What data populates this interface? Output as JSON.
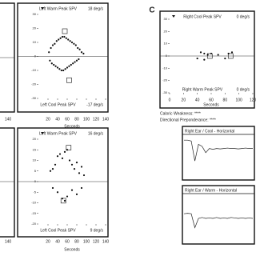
{
  "figure_label": "C",
  "left_fragment_tick": "140",
  "notes": [
    "Caloric Weakness: ****",
    "Directional Preponderance: ****"
  ],
  "chart_data": [
    {
      "type": "scatter",
      "top_label": "Left Warm Peak SPV",
      "top_value_label": "18 deg/s",
      "bottom_label": "Left Cool Peak SPV",
      "bottom_value_label": "-17 deg/s",
      "x_label": "Seconds",
      "xlim": [
        0,
        140
      ],
      "xticks": [
        20,
        40,
        60,
        80,
        100,
        120,
        140
      ],
      "ylim": [
        -30,
        30
      ],
      "yticks": [
        30,
        20,
        10,
        0,
        -10,
        -20,
        -30
      ],
      "color": "#111111",
      "x": [
        22,
        26,
        30,
        34,
        38,
        42,
        46,
        50,
        54,
        58,
        62,
        66,
        70,
        74,
        78,
        82,
        86,
        90,
        94,
        24,
        28,
        32,
        36,
        40,
        44,
        48,
        52,
        56,
        60,
        64,
        68,
        72,
        76,
        80,
        84
      ],
      "values": [
        3,
        6,
        8,
        9,
        11,
        12,
        13,
        14,
        14,
        13,
        12,
        11,
        10,
        9,
        8,
        6,
        5,
        3,
        2,
        -3,
        -5,
        -6,
        -7,
        -8,
        -9,
        -10,
        -10,
        -9,
        -8,
        -7,
        -6,
        -5,
        -4,
        -3,
        -2
      ],
      "peaks": {
        "x": [
          55,
          64
        ],
        "values": [
          18,
          -17
        ]
      }
    },
    {
      "type": "scatter",
      "top_label": "Left Warm Peak SPV",
      "top_value_label": "16 deg/s",
      "bottom_label": "Left Cool Peak SPV",
      "bottom_value_label": "9 deg/s",
      "x_label": "Seconds",
      "xlim": [
        0,
        140
      ],
      "xticks": [
        20,
        40,
        60,
        80,
        100,
        120,
        140
      ],
      "ylim": [
        -20,
        20
      ],
      "yticks": [
        20,
        15,
        10,
        5,
        0,
        -5,
        -10,
        -15,
        -20
      ],
      "color": "#111111",
      "x": [
        25,
        30,
        35,
        40,
        45,
        50,
        55,
        60,
        65,
        70,
        75,
        80,
        85,
        90,
        95,
        30,
        40,
        50,
        55,
        60,
        70,
        80,
        90
      ],
      "values": [
        5,
        6,
        8,
        12,
        13,
        11,
        14,
        15,
        10,
        8,
        6,
        9,
        4,
        7,
        3,
        -3,
        -5,
        -8,
        -9,
        -7,
        -4,
        -6,
        -3
      ],
      "peaks": {
        "x": [
          63,
          52
        ],
        "values": [
          16,
          -9
        ]
      }
    },
    {
      "type": "scatter",
      "top_label": "Right Cool Peak SPV",
      "top_value_label": "0 deg/s",
      "bottom_label": "Right Warm Peak SPV",
      "bottom_value_label": "0 deg/s",
      "x_label": "Seconds",
      "xlim": [
        0,
        120
      ],
      "xticks": [
        0,
        20,
        40,
        60,
        80,
        100,
        120
      ],
      "ylim": [
        -30,
        30
      ],
      "yticks": [
        30,
        20,
        10,
        0,
        -10,
        -20,
        -30
      ],
      "color": "#111111",
      "x": [
        45,
        50,
        55,
        60,
        70,
        85,
        90,
        40,
        50,
        80
      ],
      "values": [
        3,
        2,
        1,
        2,
        1,
        2,
        3,
        -2,
        -3,
        -2
      ],
      "peaks": {
        "x": [
          58,
          88
        ],
        "values": [
          0,
          0
        ]
      }
    },
    {
      "type": "line",
      "title": "Right Ear / Cool - Horizontal",
      "color": "#222222",
      "ylim": [
        0,
        10
      ],
      "values": [
        9,
        9,
        8.8,
        4,
        8,
        7.5,
        6,
        7,
        6.8,
        7,
        6.9,
        7,
        7.1,
        7,
        7,
        6.9,
        7,
        7.1,
        7,
        7
      ]
    },
    {
      "type": "line",
      "title": "Right Ear / Warm - Horizontal",
      "color": "#222222",
      "ylim": [
        0,
        10
      ],
      "values": [
        6,
        6.1,
        6,
        3,
        5,
        5.2,
        5,
        5.1,
        5,
        5.2,
        5,
        5.1,
        5,
        5.2,
        5.1,
        5,
        5.1,
        5,
        5.1,
        5
      ]
    }
  ]
}
